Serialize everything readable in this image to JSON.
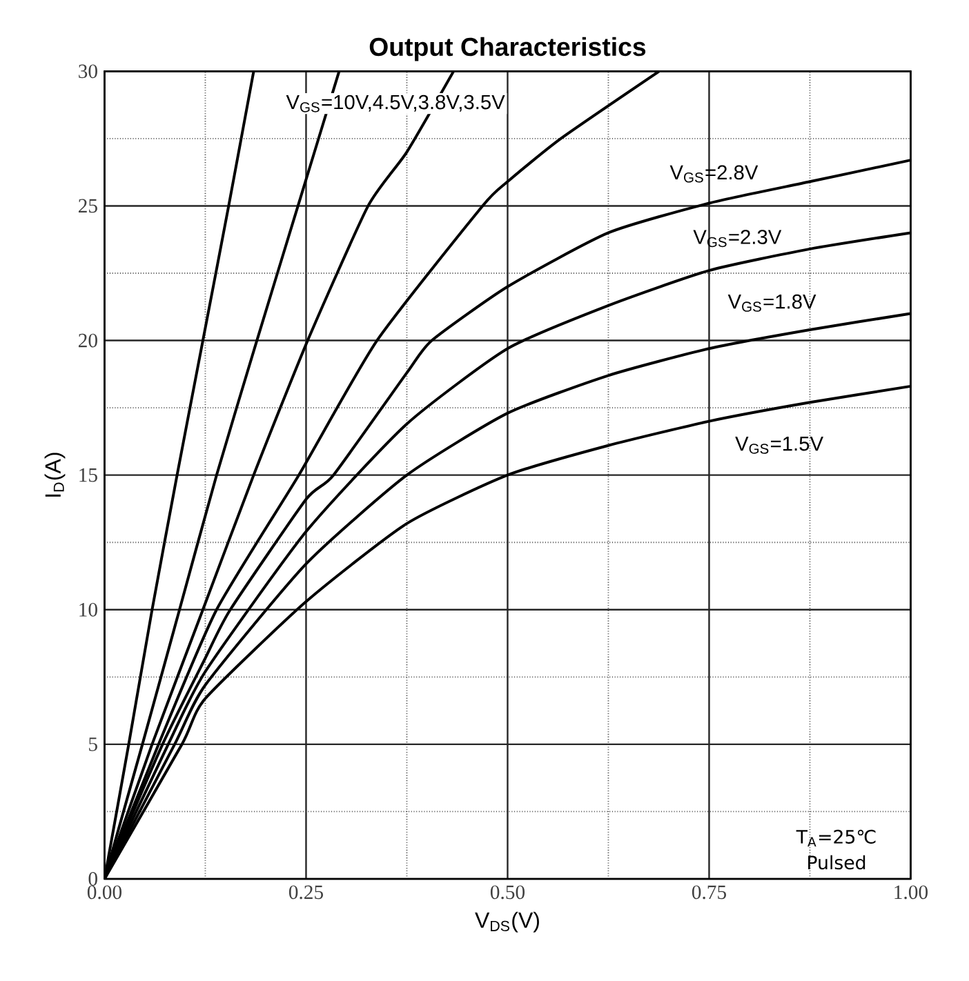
{
  "chart_data": {
    "type": "line",
    "title": "Output Characteristics",
    "xlabel": "V$_{DS}$(V)",
    "ylabel": "I$_{D}$(A)",
    "xlim": [
      0,
      1
    ],
    "ylim": [
      0,
      30
    ],
    "xticks": [
      {
        "value": 0,
        "label": "0.00"
      },
      {
        "value": 0.25,
        "label": "0.25"
      },
      {
        "value": 0.5,
        "label": "0.50"
      },
      {
        "value": 0.75,
        "label": "0.75"
      },
      {
        "value": 1,
        "label": "1.00"
      }
    ],
    "yticks": [
      0,
      5,
      10,
      15,
      20,
      25,
      30
    ],
    "grid": true,
    "legend": false,
    "marker": "none",
    "line_style": "solid",
    "series": [
      {
        "color": "#000000",
        "x": [
          0,
          0.03,
          0.059,
          0.09,
          0.122,
          0.154,
          0.185
        ],
        "values": [
          0,
          5,
          10,
          15,
          20,
          25,
          30
        ]
      },
      {
        "color": "#000000",
        "x": [
          0,
          0.047,
          0.093,
          0.139,
          0.189,
          0.24,
          0.291
        ],
        "values": [
          0,
          5,
          10,
          15,
          20,
          25,
          30
        ]
      },
      {
        "color": "#000000",
        "x": [
          0,
          0.059,
          0.122,
          0.185,
          0.252,
          0.327,
          0.375,
          0.433
        ],
        "values": [
          0,
          5,
          10,
          15,
          20,
          25,
          27,
          30
        ]
      },
      {
        "color": "#000000",
        "x": [
          0,
          0.067,
          0.139,
          0.241,
          0.338,
          0.469,
          0.5,
          0.566,
          0.688
        ],
        "values": [
          0,
          5,
          10,
          15,
          20,
          25,
          25.9,
          27.5,
          30
        ]
      },
      {
        "name": "V$_{GS}$=2.8V",
        "color": "#000000",
        "x": [
          0,
          0.072,
          0.125,
          0.156,
          0.25,
          0.284,
          0.375,
          0.406,
          0.5,
          0.625,
          0.75,
          0.875,
          1.0
        ],
        "values": [
          0,
          5,
          8.2,
          10,
          14.1,
          15,
          18.8,
          20,
          22,
          24,
          25.1,
          25.9,
          26.7
        ]
      },
      {
        "name": "V$_{GS}$=2.3V",
        "color": "#000000",
        "x": [
          0,
          0.079,
          0.125,
          0.25,
          0.375,
          0.5,
          0.625,
          0.75,
          0.875,
          1.0
        ],
        "values": [
          0,
          5,
          7.7,
          12.9,
          16.9,
          19.7,
          21.3,
          22.6,
          23.4,
          24.0
        ]
      },
      {
        "name": "V$_{GS}$=1.8V",
        "color": "#000000",
        "x": [
          0,
          0.087,
          0.125,
          0.25,
          0.375,
          0.5,
          0.625,
          0.75,
          0.875,
          1.0
        ],
        "values": [
          0,
          5,
          7.2,
          11.7,
          15.0,
          17.3,
          18.7,
          19.7,
          20.4,
          21.0
        ]
      },
      {
        "name": "V$_{GS}$=1.5V",
        "color": "#000000",
        "x": [
          0,
          0.096,
          0.125,
          0.25,
          0.375,
          0.5,
          0.625,
          0.75,
          0.875,
          1.0
        ],
        "values": [
          0,
          5,
          6.7,
          10.3,
          13.2,
          15.0,
          16.1,
          17.0,
          17.7,
          18.3
        ]
      }
    ],
    "annotations": [
      "V$_{GS}$=10V,4.5V,3.8V,3.5V",
      "T$_{A}$=25℃",
      "Pulsed"
    ]
  }
}
